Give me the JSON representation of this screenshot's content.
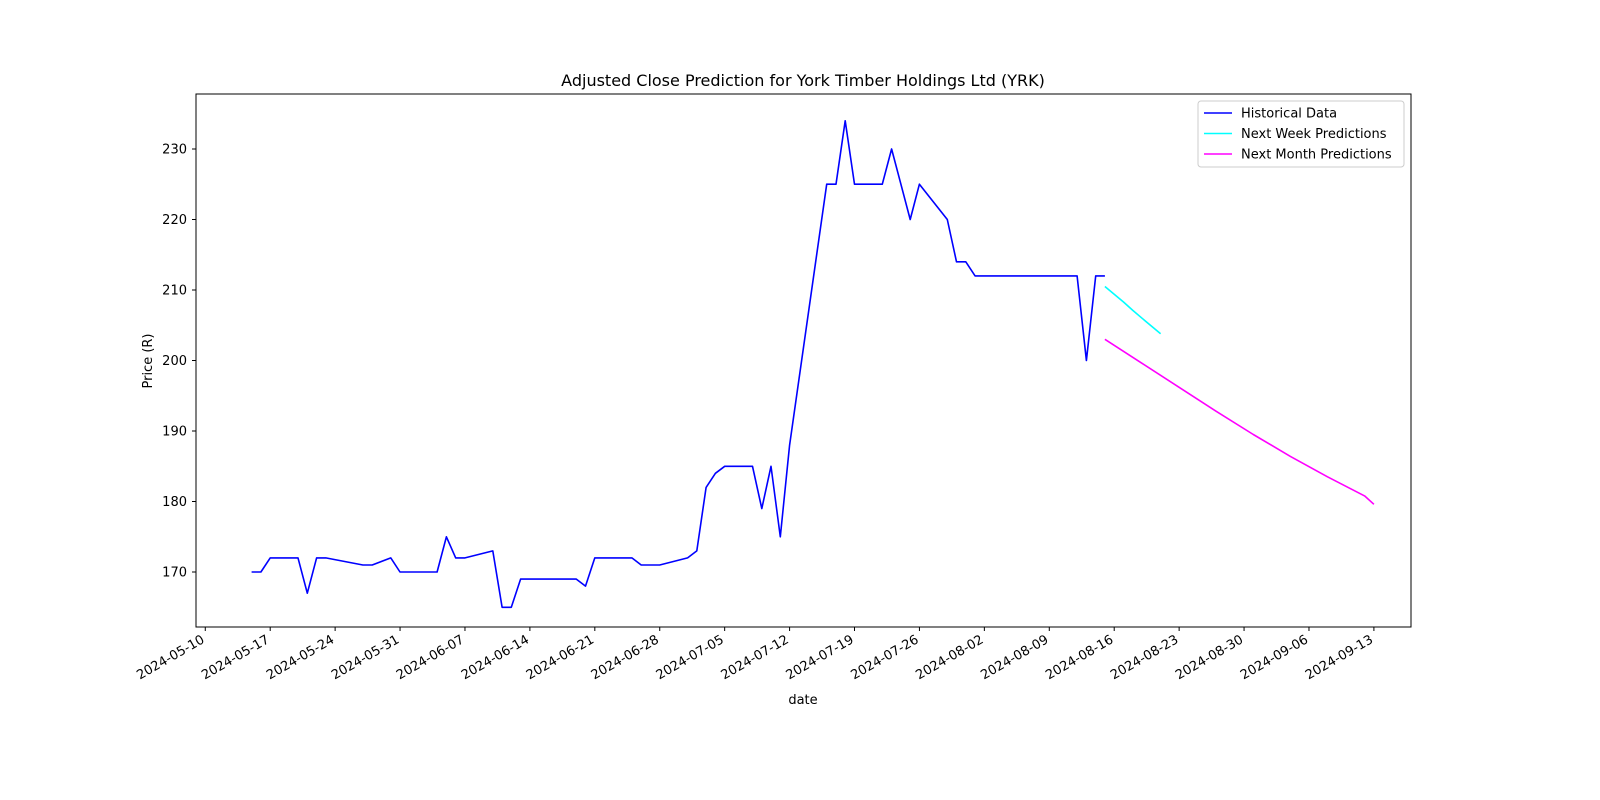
{
  "chart_data": {
    "type": "line",
    "title": "Adjusted Close Prediction for York Timber Holdings Ltd (YRK)",
    "xlabel": "date",
    "ylabel": "Price (R)",
    "xlim": [
      "2024-05-09",
      "2024-09-17"
    ],
    "ylim": [
      162.2,
      237.8
    ],
    "x_ticks": [
      "2024-05-10",
      "2024-05-17",
      "2024-05-24",
      "2024-05-31",
      "2024-06-07",
      "2024-06-14",
      "2024-06-21",
      "2024-06-28",
      "2024-07-05",
      "2024-07-12",
      "2024-07-19",
      "2024-07-26",
      "2024-08-02",
      "2024-08-09",
      "2024-08-16",
      "2024-08-23",
      "2024-08-30",
      "2024-09-06",
      "2024-09-13"
    ],
    "y_ticks": [
      170,
      180,
      190,
      200,
      210,
      220,
      230
    ],
    "grid": false,
    "legend_position": "top-right",
    "series": [
      {
        "name": "Historical Data",
        "color": "#0000ff",
        "x": [
          "2024-05-15",
          "2024-05-16",
          "2024-05-17",
          "2024-05-20",
          "2024-05-21",
          "2024-05-22",
          "2024-05-23",
          "2024-05-27",
          "2024-05-28",
          "2024-05-30",
          "2024-05-31",
          "2024-06-03",
          "2024-06-04",
          "2024-06-05",
          "2024-06-06",
          "2024-06-07",
          "2024-06-10",
          "2024-06-11",
          "2024-06-12",
          "2024-06-13",
          "2024-06-14",
          "2024-06-19",
          "2024-06-20",
          "2024-06-21",
          "2024-06-25",
          "2024-06-26",
          "2024-06-27",
          "2024-06-28",
          "2024-07-01",
          "2024-07-02",
          "2024-07-03",
          "2024-07-04",
          "2024-07-05",
          "2024-07-08",
          "2024-07-09",
          "2024-07-10",
          "2024-07-11",
          "2024-07-12",
          "2024-07-16",
          "2024-07-17",
          "2024-07-18",
          "2024-07-19",
          "2024-07-22",
          "2024-07-23",
          "2024-07-24",
          "2024-07-25",
          "2024-07-26",
          "2024-07-29",
          "2024-07-30",
          "2024-07-31",
          "2024-08-01",
          "2024-08-12",
          "2024-08-13",
          "2024-08-14",
          "2024-08-15"
        ],
        "values": [
          170,
          170,
          172,
          172,
          167,
          172,
          172,
          171,
          171,
          172,
          170,
          170,
          170,
          175,
          172,
          172,
          173,
          165,
          165,
          169,
          169,
          169,
          168,
          172,
          172,
          171,
          171,
          171,
          172,
          173,
          182,
          184,
          185,
          185,
          179,
          185,
          175,
          188,
          225,
          225,
          234,
          225,
          225,
          230,
          225,
          220,
          225,
          220,
          214,
          214,
          212,
          212,
          200,
          212,
          212
        ]
      },
      {
        "name": "Next Week Predictions",
        "color": "#00ffff",
        "x": [
          "2024-08-15",
          "2024-08-16",
          "2024-08-17",
          "2024-08-18",
          "2024-08-19",
          "2024-08-20",
          "2024-08-21"
        ],
        "values": [
          210.5,
          209.4,
          208.3,
          207.1,
          206.0,
          204.9,
          203.8
        ]
      },
      {
        "name": "Next Month Predictions",
        "color": "#ff00ff",
        "x": [
          "2024-08-15",
          "2024-08-19",
          "2024-08-23",
          "2024-08-27",
          "2024-08-31",
          "2024-09-04",
          "2024-09-08",
          "2024-09-12",
          "2024-09-13"
        ],
        "values": [
          203.0,
          199.6,
          196.2,
          192.8,
          189.5,
          186.4,
          183.5,
          180.8,
          179.6
        ]
      }
    ]
  }
}
